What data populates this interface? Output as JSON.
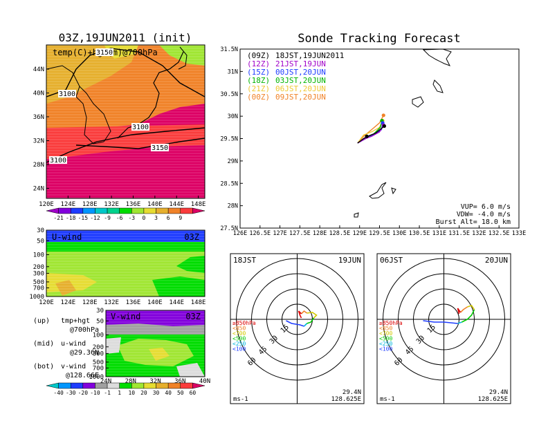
{
  "left": {
    "title": "03Z,19JUN2011  (init)",
    "map": {
      "label": "temp(C)+hgt(m)@700hPa",
      "xticks": [
        "120E",
        "124E",
        "128E",
        "132E",
        "136E",
        "140E",
        "144E",
        "148E"
      ],
      "yticks": [
        "44N",
        "40N",
        "36N",
        "32N",
        "28N",
        "24N"
      ],
      "contours": [
        "3150",
        "3100",
        "3100",
        "3100",
        "3150",
        "3100"
      ]
    },
    "colorbar1": {
      "labels": [
        "-21",
        "-18",
        "-15",
        "-12",
        "-9",
        "-6",
        "-3",
        "0",
        "3",
        "6",
        "9"
      ],
      "colors": [
        "#a000c8",
        "#8200dc",
        "#1e3cff",
        "#0096ff",
        "#00c8c8",
        "#00d28c",
        "#00dc00",
        "#a0e632",
        "#e6dc32",
        "#e6af2d",
        "#f08228",
        "#fa3c3c",
        "#dc0064"
      ]
    },
    "uwind": {
      "label": "U-wind",
      "time": "03Z",
      "yticks": [
        "30",
        "50",
        "100",
        "200",
        "300",
        "500",
        "700",
        "1000"
      ],
      "xticks": [
        "120E",
        "124E",
        "128E",
        "132E",
        "136E",
        "140E",
        "144E",
        "148E"
      ]
    },
    "vwind": {
      "label": "V-wind",
      "time": "03Z",
      "yticks": [
        "30",
        "50",
        "100",
        "200",
        "300",
        "500",
        "700",
        "1000"
      ],
      "xticks": [
        "24N",
        "28N",
        "32N",
        "36N",
        "40N"
      ]
    },
    "notes": [
      {
        "key": "(up)",
        "val": "tmp+hgt"
      },
      {
        "key": "",
        "val": "@700hPa"
      },
      {
        "key": "(mid)",
        "val": "u-wind"
      },
      {
        "key": "",
        "val": "@29.36N"
      },
      {
        "key": "(bot)",
        "val": "v-wind"
      },
      {
        "key": "",
        "val": "@128.66E"
      }
    ],
    "colorbar2": {
      "labels": [
        "-40",
        "-30",
        "-20",
        "-10",
        "-1",
        "1",
        "10",
        "20",
        "30",
        "40",
        "50",
        "60"
      ],
      "colors": [
        "#00c8c8",
        "#0096ff",
        "#1e3cff",
        "#8200dc",
        "#a0a0a0",
        "#dcdcdc",
        "#00dc00",
        "#a0e632",
        "#e6dc32",
        "#e6af2d",
        "#f08228",
        "#fa3c3c",
        "#dc0064"
      ]
    }
  },
  "tracking": {
    "title": "Sonde Tracking Forecast",
    "xticks": [
      "126E",
      "126.5E",
      "127E",
      "127.5E",
      "128E",
      "128.5E",
      "129E",
      "129.5E",
      "130E",
      "130.5E",
      "131E",
      "131.5E",
      "132E",
      "132.5E",
      "133E"
    ],
    "yticks": [
      "31.5N",
      "31N",
      "30.5N",
      "30N",
      "29.5N",
      "29N",
      "28.5N",
      "28N",
      "27.5N"
    ],
    "legend": [
      {
        "code": "(09Z)",
        "text": "18JST,19JUN2011",
        "color": "#000000"
      },
      {
        "code": "(12Z)",
        "text": "21JST,19JUN",
        "color": "#a000c8"
      },
      {
        "code": "(15Z)",
        "text": "00JST,20JUN",
        "color": "#1e3cff"
      },
      {
        "code": "(18Z)",
        "text": "03JST,20JUN",
        "color": "#00b400"
      },
      {
        "code": "(21Z)",
        "text": "06JST,20JUN",
        "color": "#f0c832"
      },
      {
        "code": "(00Z)",
        "text": "09JST,20JUN",
        "color": "#f08228"
      }
    ],
    "params": [
      "VUP=  6.0  m/s",
      "VDW= -4.0  m/s",
      "Burst Alt=  18.0  km"
    ]
  },
  "hodo1": {
    "time": "18JST",
    "date": "19JUN",
    "ring_labels": [
      "15",
      "30",
      "45",
      "60"
    ],
    "levels": [
      "≥850hPa",
      "<850",
      "<700",
      "<500",
      "<250",
      "<100"
    ],
    "level_colors": [
      "#dc0000",
      "#f08228",
      "#d2c800",
      "#00c800",
      "#00b4dc",
      "#1e3cff"
    ],
    "unit": "ms-1",
    "lat": "29.4N",
    "lon": "128.625E"
  },
  "hodo2": {
    "time": "06JST",
    "date": "20JUN",
    "ring_labels": [
      "15",
      "30",
      "45",
      "60"
    ],
    "levels": [
      "≥850hPa",
      "<850",
      "<700",
      "<500",
      "<250",
      "<100"
    ],
    "level_colors": [
      "#dc0000",
      "#f08228",
      "#d2c800",
      "#00c800",
      "#00b4dc",
      "#1e3cff"
    ],
    "unit": "ms-1",
    "lat": "29.4N",
    "lon": "128.625E"
  }
}
